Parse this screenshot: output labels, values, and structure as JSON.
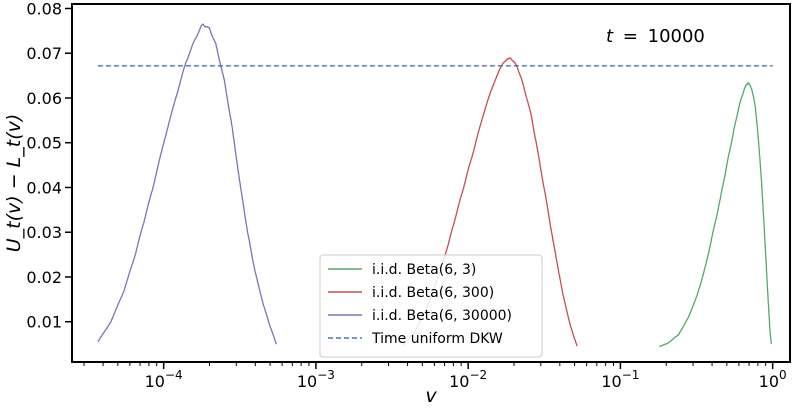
{
  "chart_data": {
    "type": "line",
    "xscale": "log",
    "xlabel": "v",
    "ylabel": "U_t(v) − L_t(v)",
    "xlim": [
      2.5e-05,
      1.3
    ],
    "ylim": [
      0.001,
      0.081
    ],
    "grid": false,
    "legend_position": "bottom-center",
    "annotation": {
      "prefix": "t",
      "value": "10000"
    },
    "x_ticks": [
      {
        "value": 0.0001,
        "mantissa": "10",
        "exp": "−4"
      },
      {
        "value": 0.001,
        "mantissa": "10",
        "exp": "−3"
      },
      {
        "value": 0.01,
        "mantissa": "10",
        "exp": "−2"
      },
      {
        "value": 0.1,
        "mantissa": "10",
        "exp": "−1"
      },
      {
        "value": 1,
        "mantissa": "10",
        "exp": "0"
      }
    ],
    "y_ticks": [
      {
        "value": 0.01,
        "label": "0.01"
      },
      {
        "value": 0.02,
        "label": "0.02"
      },
      {
        "value": 0.03,
        "label": "0.03"
      },
      {
        "value": 0.04,
        "label": "0.04"
      },
      {
        "value": 0.05,
        "label": "0.05"
      },
      {
        "value": 0.06,
        "label": "0.06"
      },
      {
        "value": 0.07,
        "label": "0.07"
      },
      {
        "value": 0.08,
        "label": "0.08"
      }
    ],
    "series": [
      {
        "name": "i.i.d. Beta(6, 3)",
        "color": "#55a868",
        "style": "solid",
        "points": [
          [
            0.18,
            0.0045
          ],
          [
            0.2,
            0.005
          ],
          [
            0.24,
            0.007
          ],
          [
            0.28,
            0.011
          ],
          [
            0.32,
            0.016
          ],
          [
            0.36,
            0.022
          ],
          [
            0.4,
            0.029
          ],
          [
            0.45,
            0.037
          ],
          [
            0.5,
            0.045
          ],
          [
            0.55,
            0.052
          ],
          [
            0.6,
            0.058
          ],
          [
            0.65,
            0.062
          ],
          [
            0.69,
            0.0635
          ],
          [
            0.73,
            0.062
          ],
          [
            0.77,
            0.058
          ],
          [
            0.81,
            0.05
          ],
          [
            0.85,
            0.04
          ],
          [
            0.89,
            0.028
          ],
          [
            0.93,
            0.016
          ],
          [
            0.96,
            0.008
          ],
          [
            0.98,
            0.005
          ]
        ]
      },
      {
        "name": "i.i.d. Beta(6, 300)",
        "color": "#c44e52",
        "style": "solid",
        "points": [
          [
            0.0037,
            0.0045
          ],
          [
            0.0045,
            0.008
          ],
          [
            0.0055,
            0.014
          ],
          [
            0.0065,
            0.021
          ],
          [
            0.0075,
            0.028
          ],
          [
            0.0085,
            0.035
          ],
          [
            0.0095,
            0.041
          ],
          [
            0.011,
            0.049
          ],
          [
            0.013,
            0.058
          ],
          [
            0.015,
            0.064
          ],
          [
            0.017,
            0.068
          ],
          [
            0.019,
            0.069
          ],
          [
            0.021,
            0.067
          ],
          [
            0.023,
            0.063
          ],
          [
            0.026,
            0.056
          ],
          [
            0.029,
            0.047
          ],
          [
            0.033,
            0.036
          ],
          [
            0.037,
            0.026
          ],
          [
            0.042,
            0.016
          ],
          [
            0.047,
            0.009
          ],
          [
            0.052,
            0.0045
          ]
        ]
      },
      {
        "name": "i.i.d. Beta(6, 30000)",
        "color": "#8172b2",
        "style": "solid",
        "points": [
          [
            3.7e-05,
            0.0055
          ],
          [
            4.5e-05,
            0.01
          ],
          [
            5.5e-05,
            0.017
          ],
          [
            6.5e-05,
            0.025
          ],
          [
            7.5e-05,
            0.033
          ],
          [
            8.5e-05,
            0.04
          ],
          [
            0.0001,
            0.05
          ],
          [
            0.00012,
            0.06
          ],
          [
            0.00014,
            0.068
          ],
          [
            0.00016,
            0.073
          ],
          [
            0.00018,
            0.0765
          ],
          [
            0.0002,
            0.0755
          ],
          [
            0.00022,
            0.072
          ],
          [
            0.00025,
            0.064
          ],
          [
            0.00028,
            0.054
          ],
          [
            0.00032,
            0.04
          ],
          [
            0.00036,
            0.029
          ],
          [
            0.0004,
            0.021
          ],
          [
            0.00045,
            0.014
          ],
          [
            0.0005,
            0.009
          ],
          [
            0.00055,
            0.005
          ]
        ]
      },
      {
        "name": "Time uniform DKW",
        "color": "#4c72b0",
        "style": "dashed",
        "points": [
          [
            3.7e-05,
            0.0672
          ],
          [
            1.0,
            0.0672
          ]
        ]
      }
    ]
  }
}
